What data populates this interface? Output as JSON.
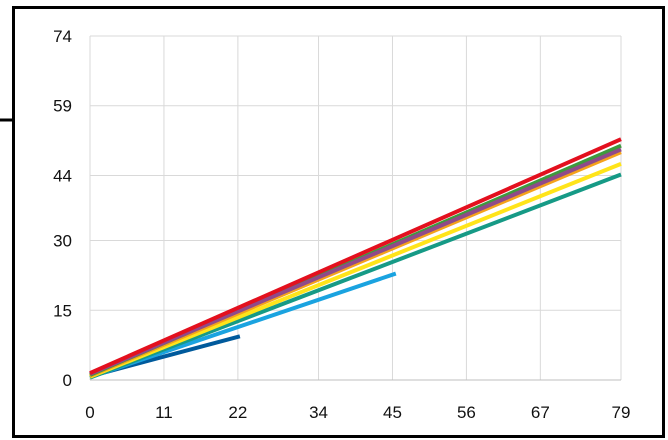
{
  "chart_data": {
    "type": "line",
    "title": "",
    "xlabel": "",
    "ylabel": "",
    "xlim": [
      0,
      79
    ],
    "ylim": [
      0,
      74
    ],
    "x_ticks": [
      "0",
      "11",
      "22",
      "34",
      "45",
      "56",
      "67",
      "79"
    ],
    "y_ticks": [
      "0",
      "15",
      "30",
      "44",
      "59",
      "74"
    ],
    "x_tick_values": [
      0,
      11,
      22,
      34,
      45,
      56,
      67,
      79
    ],
    "y_tick_values": [
      0,
      15,
      30,
      44,
      59,
      74
    ],
    "grid": true,
    "legend": "none",
    "series": [
      {
        "color": "#005a9c",
        "x": [
          0,
          22.3
        ],
        "y": [
          0.8,
          9.4
        ]
      },
      {
        "color": "#1aa3e0",
        "x": [
          0,
          45.5
        ],
        "y": [
          0.6,
          22.9
        ]
      },
      {
        "color": "#169a86",
        "x": [
          0,
          79
        ],
        "y": [
          0.5,
          44.2
        ]
      },
      {
        "color": "#ffe41a",
        "x": [
          0,
          79
        ],
        "y": [
          0.7,
          46.5
        ]
      },
      {
        "color": "#f5a21b",
        "x": [
          0,
          79
        ],
        "y": [
          0.9,
          49.0
        ]
      },
      {
        "color": "#3e9a3d",
        "x": [
          0,
          79
        ],
        "y": [
          1.1,
          50.4
        ]
      },
      {
        "color": "#8f4a8a",
        "x": [
          0,
          79
        ],
        "y": [
          1.3,
          49.6
        ]
      },
      {
        "color": "#e3101e",
        "x": [
          0,
          79
        ],
        "y": [
          1.5,
          51.8
        ]
      }
    ]
  }
}
